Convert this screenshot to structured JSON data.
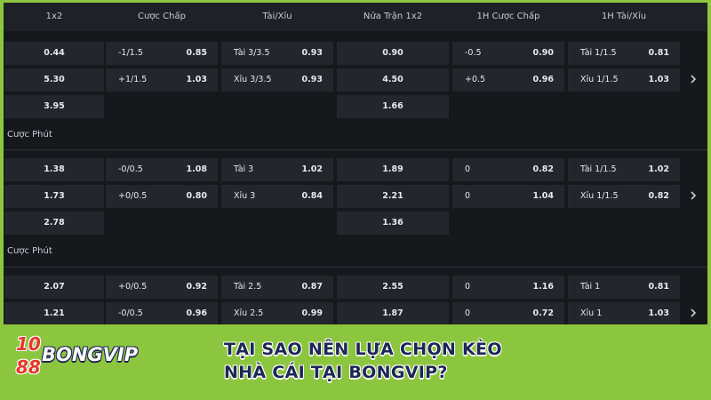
{
  "header": {
    "one_x_two": "1x2",
    "handicap": "Cược Chấp",
    "over_under": "Tài/Xỉu",
    "half_1x2": "Nửa Trận 1x2",
    "h1_handicap": "1H Cược Chấp",
    "h1_over_under": "1H Tài/Xỉu"
  },
  "groups": [
    {
      "one_x_two": [
        "0.44",
        "5.30",
        "3.95"
      ],
      "handicap": [
        {
          "line": "-1/1.5",
          "odds": "0.85"
        },
        {
          "line": "+1/1.5",
          "odds": "1.03"
        }
      ],
      "over_under": [
        {
          "line": "Tài 3/3.5",
          "odds": "0.93"
        },
        {
          "line": "Xỉu 3/3.5",
          "odds": "0.93"
        }
      ],
      "half_1x2": [
        "0.90",
        "4.50",
        "1.66"
      ],
      "h1_handicap": [
        {
          "line": "-0.5",
          "odds": "0.90"
        },
        {
          "line": "+0.5",
          "odds": "0.96"
        }
      ],
      "h1_over_under": [
        {
          "line": "Tài 1/1.5",
          "odds": "0.81"
        },
        {
          "line": "Xỉu 1/1.5",
          "odds": "1.03"
        }
      ],
      "label": "Cược Phút"
    },
    {
      "one_x_two": [
        "1.38",
        "1.73",
        "2.78"
      ],
      "handicap": [
        {
          "line": "-0/0.5",
          "odds": "1.08"
        },
        {
          "line": "+0/0.5",
          "odds": "0.80"
        }
      ],
      "over_under": [
        {
          "line": "Tài 3",
          "odds": "1.02"
        },
        {
          "line": "Xỉu 3",
          "odds": "0.84"
        }
      ],
      "half_1x2": [
        "1.89",
        "2.21",
        "1.36"
      ],
      "h1_handicap": [
        {
          "line": "0",
          "odds": "0.82"
        },
        {
          "line": "0",
          "odds": "1.04"
        }
      ],
      "h1_over_under": [
        {
          "line": "Tài 1/1.5",
          "odds": "1.02"
        },
        {
          "line": "Xỉu 1/1.5",
          "odds": "0.82"
        }
      ],
      "label": "Cược Phút"
    },
    {
      "one_x_two": [
        "2.07",
        "1.21"
      ],
      "handicap": [
        {
          "line": "+0/0.5",
          "odds": "0.92"
        },
        {
          "line": "-0/0.5",
          "odds": "0.96"
        }
      ],
      "over_under": [
        {
          "line": "Tài 2.5",
          "odds": "0.87"
        },
        {
          "line": "Xỉu 2.5",
          "odds": "0.99"
        }
      ],
      "half_1x2": [
        "2.55",
        "1.87"
      ],
      "h1_handicap": [
        {
          "line": "0",
          "odds": "1.16"
        },
        {
          "line": "0",
          "odds": "0.72"
        }
      ],
      "h1_over_under": [
        {
          "line": "Tài 1",
          "odds": "0.81"
        },
        {
          "line": "Xỉu 1",
          "odds": "1.03"
        }
      ]
    }
  ],
  "banner": {
    "logo_top": "10",
    "logo_bottom": "88",
    "logo_word": "BONGVIP",
    "headline": [
      "TẠI SAO NÊN LỰA CHỌN KÈO",
      "NHÀ CÁI TẠI BONGVIP?"
    ]
  }
}
